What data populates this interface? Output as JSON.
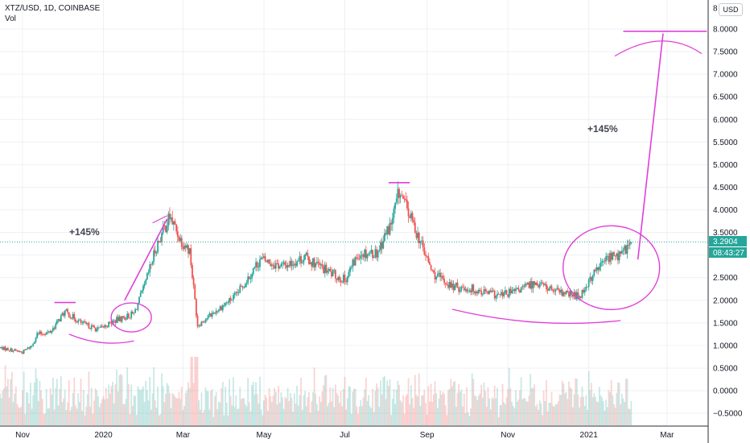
{
  "header": {
    "symbol_line": "XTZ/USD, 1D, COINBASE",
    "volume_label": "Vol"
  },
  "currency_button": "USD",
  "price_axis": {
    "ticks": [
      "8",
      "8.0000",
      "7.5000",
      "7.0000",
      "6.5000",
      "6.0000",
      "5.5000",
      "5.0000",
      "4.5000",
      "4.0000",
      "3.5000",
      "3.0000",
      "2.5000",
      "2.0000",
      "1.5000",
      "1.0000",
      "0.5000",
      "0.0000",
      "−0.5000"
    ],
    "last_price_label": "3.2904",
    "countdown_label": "08:43:27",
    "last_price": 3.2904
  },
  "time_axis": {
    "labels": [
      "Nov",
      "2020",
      "Mar",
      "May",
      "Jul",
      "Sep",
      "Nov",
      "2021",
      "Mar"
    ]
  },
  "annotations": {
    "left_gain": "+145%",
    "right_gain": "+145%"
  },
  "colors": {
    "up": "#26a69a",
    "down": "#ef5350",
    "annotation": "#e040d8",
    "grid": "#eef0f3",
    "last_price_tag": "#26a69a"
  },
  "chart_data": {
    "type": "candlestick",
    "title": "XTZ/USD, 1D, COINBASE",
    "ylim": [
      -0.75,
      8.25
    ],
    "y_scale": "linear",
    "grid": true,
    "price_path": [
      [
        "2019-10-15",
        0.95
      ],
      [
        "2019-11-01",
        0.85
      ],
      [
        "2019-11-08",
        1.0
      ],
      [
        "2019-11-12",
        1.25
      ],
      [
        "2019-11-22",
        1.3
      ],
      [
        "2019-12-03",
        1.75
      ],
      [
        "2019-12-15",
        1.5
      ],
      [
        "2019-12-28",
        1.35
      ],
      [
        "2020-01-10",
        1.55
      ],
      [
        "2020-01-24",
        1.7
      ],
      [
        "2020-02-01",
        2.3
      ],
      [
        "2020-02-10",
        3.2
      ],
      [
        "2020-02-20",
        3.85
      ],
      [
        "2020-02-28",
        3.35
      ],
      [
        "2020-03-06",
        3.1
      ],
      [
        "2020-03-12",
        1.45
      ],
      [
        "2020-03-25",
        1.75
      ],
      [
        "2020-04-10",
        2.1
      ],
      [
        "2020-04-28",
        2.9
      ],
      [
        "2020-05-15",
        2.75
      ],
      [
        "2020-06-01",
        2.95
      ],
      [
        "2020-06-20",
        2.6
      ],
      [
        "2020-07-01",
        2.45
      ],
      [
        "2020-07-12",
        3.05
      ],
      [
        "2020-07-25",
        3.05
      ],
      [
        "2020-08-05",
        3.7
      ],
      [
        "2020-08-11",
        4.4
      ],
      [
        "2020-08-25",
        3.45
      ],
      [
        "2020-09-05",
        2.6
      ],
      [
        "2020-09-20",
        2.3
      ],
      [
        "2020-10-05",
        2.25
      ],
      [
        "2020-10-25",
        2.1
      ],
      [
        "2020-11-08",
        2.2
      ],
      [
        "2020-11-22",
        2.4
      ],
      [
        "2020-12-10",
        2.15
      ],
      [
        "2020-12-25",
        2.1
      ],
      [
        "2021-01-05",
        2.6
      ],
      [
        "2021-01-15",
        2.95
      ],
      [
        "2021-01-25",
        3.0
      ],
      [
        "2021-02-02",
        3.2904
      ]
    ],
    "marked_highs": [
      [
        "2019-12-03",
        1.95
      ],
      [
        "2020-08-11",
        4.6
      ]
    ],
    "target_price": 7.95,
    "projection": {
      "from": [
        "2021-02-07",
        2.9
      ],
      "to": [
        "2021-02-26",
        7.9
      ]
    },
    "left_projection": {
      "from": [
        "2020-01-17",
        2.0
      ],
      "to": [
        "2020-02-18",
        3.8
      ]
    }
  }
}
